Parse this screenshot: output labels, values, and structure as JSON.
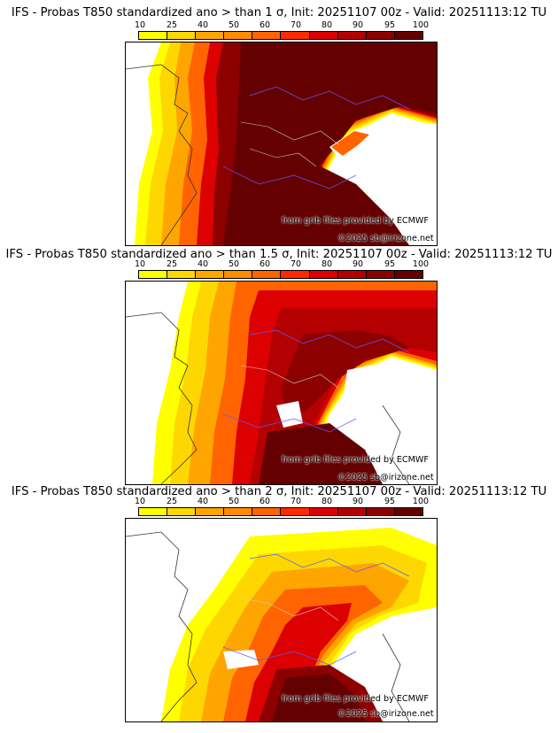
{
  "colors": {
    "scale": [
      "#ffff00",
      "#ffd700",
      "#ffa500",
      "#ff8c00",
      "#ff6400",
      "#ff2a00",
      "#dc0000",
      "#b40000",
      "#8c0000",
      "#640000"
    ],
    "land": "#ffffff",
    "border": "#5a5aff",
    "coast": "#333333"
  },
  "colorbar": {
    "ticks": [
      "10",
      "25",
      "40",
      "50",
      "60",
      "70",
      "80",
      "90",
      "95",
      "100"
    ]
  },
  "panels": [
    {
      "title": "IFS - Probas T850  standardized ano > than 1 σ, Init: 20251107 00z - Valid: 20251113:12 TU",
      "credit_source": "from grib files provided by ECMWF",
      "credit_copyright": "©2025 sb@irizone.net"
    },
    {
      "title": "IFS - Probas T850  standardized ano > than 1.5 σ, Init: 20251107 00z - Valid: 20251113:12 TU",
      "credit_source": "from grib files provided by ECMWF",
      "credit_copyright": "©2025 sb@irizone.net"
    },
    {
      "title": "IFS - Probas T850  standardized ano > than 2 σ, Init: 20251107 00z - Valid: 20251113:12 TU",
      "credit_source": "from grib files provided by ECMWF",
      "credit_copyright": "©2025 sb@irizone.net"
    }
  ]
}
